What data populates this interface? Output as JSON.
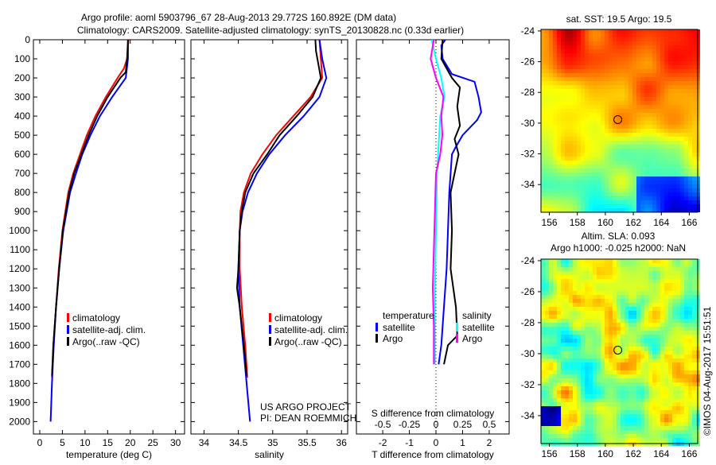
{
  "title_line1": "Argo profile: aoml 5903796_67 28-Aug-2013 29.772S 160.892E (DM data)",
  "title_line2": "Climatology: CARS2009. Satellite-adjusted climatology: synTS_20130828.nc (0.33d earlier)",
  "credit": "©IMOS 04-Aug-2017 15:51:51",
  "project_line1": "US ARGO PROJECT",
  "project_line2": "PI: DEAN ROEMMICH",
  "colors": {
    "climatology": "#ff0000",
    "satellite": "#0000ff",
    "argo": "#000000",
    "sal_satellite": "#00ffff",
    "sal_argo": "#ff00ff"
  },
  "chart_data": [
    {
      "type": "line",
      "id": "temperature",
      "xlabel": "temperature (deg C)",
      "xlim": [
        -1.4,
        32
      ],
      "ylim": [
        2065,
        0
      ],
      "xticks": [
        0,
        5,
        10,
        15,
        20,
        25,
        30
      ],
      "yticks": [
        0,
        100,
        200,
        300,
        400,
        500,
        600,
        700,
        800,
        900,
        1000,
        1100,
        1200,
        1300,
        1400,
        1500,
        1600,
        1700,
        1800,
        1900,
        2000
      ],
      "legend": [
        "climatology",
        "satellite-adj. clim.",
        "Argo(..raw -QC)"
      ],
      "series": [
        {
          "name": "climatology",
          "color": "#ff0000",
          "depth": [
            0,
            100,
            150,
            200,
            300,
            400,
            500,
            600,
            700,
            800,
            1000,
            1200,
            1400,
            1600,
            1770
          ],
          "values": [
            19.6,
            19.3,
            18.6,
            17.2,
            14.6,
            12.3,
            10.4,
            8.9,
            7.4,
            6.3,
            5.0,
            4.2,
            3.6,
            3.0,
            2.7
          ]
        },
        {
          "name": "satellite-adj. clim.",
          "color": "#0000ff",
          "depth": [
            0,
            100,
            200,
            300,
            400,
            500,
            600,
            700,
            800,
            1000,
            1200,
            1400,
            1600,
            1800,
            2000
          ],
          "values": [
            19.5,
            19.5,
            19.0,
            16.0,
            13.3,
            11.2,
            9.4,
            8.0,
            6.7,
            5.2,
            4.3,
            3.6,
            3.1,
            2.7,
            2.4
          ]
        },
        {
          "name": "Argo(..raw -QC)",
          "color": "#000000",
          "depth": [
            0,
            100,
            170,
            200,
            300,
            400,
            500,
            600,
            700,
            800,
            1000,
            1200,
            1400,
            1600,
            1760
          ],
          "values": [
            19.5,
            19.3,
            19.0,
            17.8,
            15.0,
            12.7,
            10.8,
            9.2,
            7.6,
            6.5,
            5.1,
            4.3,
            3.6,
            3.0,
            2.7
          ]
        }
      ]
    },
    {
      "type": "line",
      "id": "salinity",
      "xlabel": "salinity",
      "xlim": [
        33.81,
        36.09
      ],
      "ylim": [
        2065,
        0
      ],
      "xticks": [
        34,
        34.5,
        35,
        35.5,
        36
      ],
      "legend": [
        "climatology",
        "satellite-adj. clim.",
        "Argo(..raw -QC)"
      ],
      "series": [
        {
          "name": "climatology",
          "color": "#ff0000",
          "depth": [
            0,
            100,
            200,
            300,
            400,
            500,
            600,
            700,
            800,
            900,
            1000,
            1200,
            1400,
            1600,
            1770
          ],
          "values": [
            35.68,
            35.7,
            35.72,
            35.55,
            35.3,
            35.05,
            34.85,
            34.68,
            34.58,
            34.53,
            34.52,
            34.52,
            34.55,
            34.6,
            34.63
          ]
        },
        {
          "name": "satellite-adj. clim.",
          "color": "#0000ff",
          "depth": [
            0,
            100,
            200,
            300,
            400,
            500,
            600,
            700,
            800,
            900,
            1000,
            1200,
            1400,
            1600,
            1800,
            2000
          ],
          "values": [
            35.68,
            35.72,
            35.78,
            35.68,
            35.45,
            35.18,
            34.95,
            34.77,
            34.64,
            34.56,
            34.52,
            34.5,
            34.52,
            34.57,
            34.62,
            34.67
          ]
        },
        {
          "name": "Argo(..raw -QC)",
          "color": "#000000",
          "depth": [
            0,
            60,
            100,
            200,
            300,
            400,
            500,
            600,
            700,
            800,
            900,
            1000,
            1200,
            1300,
            1400,
            1600,
            1760
          ],
          "values": [
            35.62,
            35.63,
            35.65,
            35.7,
            35.58,
            35.35,
            35.1,
            34.92,
            34.72,
            34.6,
            34.55,
            34.52,
            34.5,
            34.48,
            34.52,
            34.58,
            34.62
          ]
        }
      ]
    },
    {
      "type": "line",
      "id": "differences",
      "xlabel": "T difference from climatology",
      "xlabel2": "S difference from climatology",
      "xlim": [
        -2.99,
        2.75
      ],
      "ylim": [
        2065,
        0
      ],
      "xticks": [
        -2,
        -1,
        0,
        1,
        2
      ],
      "xticks2": [
        "-0.5",
        "-0.25",
        "0",
        "0.25",
        "0.5"
      ],
      "legend_temperature": {
        "title": "temperature",
        "items": [
          "satellite",
          "Argo"
        ]
      },
      "legend_salinity": {
        "title": "salinity",
        "items": [
          "satellite",
          "Argo"
        ]
      },
      "series": [
        {
          "name": "T satellite",
          "color": "#0000ff",
          "depth": [
            0,
            30,
            100,
            180,
            220,
            300,
            380,
            420,
            500,
            560,
            600,
            700,
            800,
            1000,
            1200,
            1400,
            1600,
            1700
          ],
          "values": [
            0.35,
            0.2,
            0.25,
            0.6,
            1.45,
            1.6,
            1.7,
            1.55,
            1.0,
            0.75,
            0.6,
            0.55,
            0.5,
            0.45,
            0.4,
            0.3,
            0.2,
            0.1
          ]
        },
        {
          "name": "T Argo",
          "color": "#000000",
          "depth": [
            0,
            100,
            200,
            250,
            350,
            450,
            520,
            600,
            700,
            800,
            1000,
            1200,
            1400,
            1550,
            1600,
            1700
          ],
          "values": [
            0.25,
            0.2,
            0.6,
            0.9,
            0.8,
            0.9,
            0.7,
            0.85,
            0.7,
            0.55,
            0.6,
            0.55,
            0.75,
            0.8,
            0.45,
            0.3
          ]
        },
        {
          "name": "S satellite",
          "color": "#00ffff",
          "depth": [
            0,
            100,
            200,
            300,
            400,
            500,
            700,
            1000,
            1300,
            1600,
            1700
          ],
          "values": [
            -0.04,
            0.0,
            0.05,
            0.08,
            0.04,
            0.03,
            0.01,
            0.0,
            -0.01,
            -0.01,
            -0.01
          ]
        },
        {
          "name": "S Argo",
          "color": "#ff00ff",
          "depth": [
            0,
            100,
            200,
            300,
            400,
            500,
            600,
            700,
            900,
            1100,
            1300,
            1500,
            1700
          ],
          "values": [
            -0.02,
            -0.05,
            0.0,
            0.07,
            0.05,
            0.06,
            0.04,
            0.0,
            -0.01,
            -0.02,
            -0.03,
            -0.02,
            -0.02
          ]
        }
      ]
    },
    {
      "type": "heatmap",
      "id": "sst_map",
      "title": "sat. SST: 19.5  Argo: 19.5",
      "xlim": [
        155.4,
        166.6
      ],
      "ylim": [
        -35.8,
        -23.9
      ],
      "xticks": [
        156,
        158,
        160,
        162,
        164,
        166
      ],
      "yticks": [
        -24,
        -26,
        -28,
        -30,
        -32,
        -34
      ],
      "marker": {
        "lon": 160.892,
        "lat": -29.772
      }
    },
    {
      "type": "heatmap",
      "id": "sla_map",
      "title_line1": "Altim. SLA: 0.093",
      "title_line2": "Argo h1000: -0.025 h2000: NaN",
      "xlim": [
        155.4,
        166.6
      ],
      "ylim": [
        -35.8,
        -23.9
      ],
      "xticks": [
        156,
        158,
        160,
        162,
        164,
        166
      ],
      "yticks": [
        -24,
        -26,
        -28,
        -30,
        -32,
        -34
      ],
      "marker": {
        "lon": 160.892,
        "lat": -29.772
      }
    }
  ]
}
